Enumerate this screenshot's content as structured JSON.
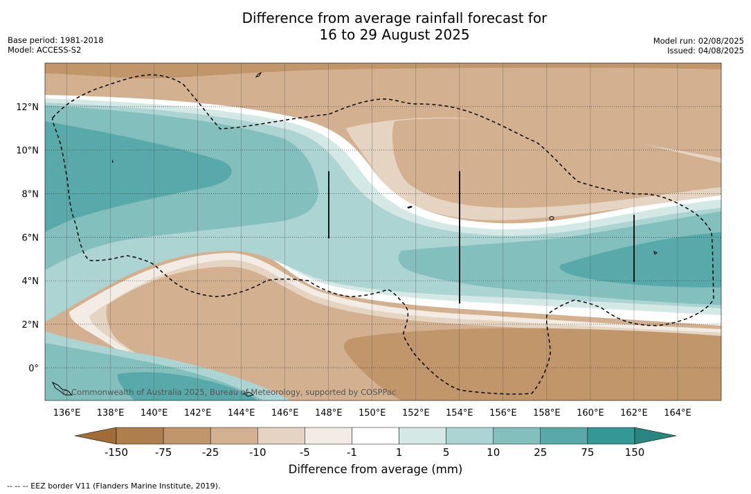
{
  "title_line1": "Difference from average rainfall forecast for",
  "title_line2": "16 to 29 August 2025",
  "base_period": "Base period: 1981-2018",
  "model": "Model: ACCESS-S2",
  "model_run": "Model run: 02/08/2025",
  "issued": "Issued: 04/08/2025",
  "copyright": "© Commonwealth of Australia 2025, Bureau of Meteorology, supported by COSPPac",
  "footer": "--  --  -- EEZ border V11 (Flanders Marine Institute, 2019).",
  "colorbar_title": "Difference from average (mm)",
  "colorbar_ticks": [
    "-150",
    "-75",
    "-25",
    "-10",
    "-5",
    "-1",
    "1",
    "5",
    "10",
    "25",
    "75",
    "150"
  ],
  "colorbar_colors": [
    "#a16c37",
    "#ae7e4c",
    "#c1966b",
    "#d3b190",
    "#e6d4c2",
    "#f3ece4",
    "#ffffff",
    "#d4e8e6",
    "#acd4d2",
    "#83bfbd",
    "#57aaa9",
    "#349996",
    "#2a8480"
  ],
  "lon_labels": [
    "136°E",
    "138°E",
    "140°E",
    "142°E",
    "144°E",
    "146°E",
    "148°E",
    "150°E",
    "152°E",
    "154°E",
    "156°E",
    "158°E",
    "160°E",
    "162°E",
    "164°E"
  ],
  "lat_labels": [
    "12°N",
    "10°N",
    "8°N",
    "6°N",
    "4°N",
    "2°N",
    "0°"
  ],
  "lon_range": [
    135,
    166
  ],
  "lat_range": [
    -1.5,
    14
  ]
}
